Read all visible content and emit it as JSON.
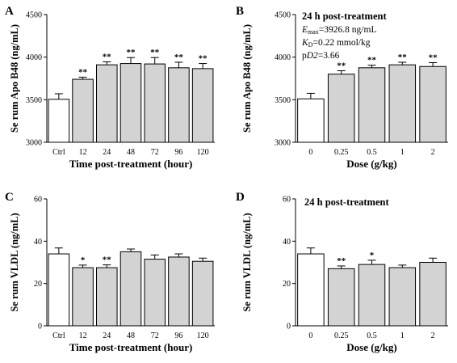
{
  "colors": {
    "control_fill": "#ffffff",
    "treated_fill": "#d3d3d3",
    "stroke": "#000000"
  },
  "chart_data": [
    {
      "panel": "A",
      "type": "bar",
      "xlabel": "Time post-treatment (hour)",
      "ylabel": "Se rum Apo B48 (ng/mL)",
      "categories": [
        "Ctrl",
        "12",
        "24",
        "48",
        "72",
        "96",
        "120"
      ],
      "values": [
        3505,
        3740,
        3910,
        3925,
        3920,
        3875,
        3865
      ],
      "errors": [
        65,
        25,
        35,
        70,
        75,
        65,
        60
      ],
      "significance": [
        "",
        "**",
        "**",
        "**",
        "**",
        "**",
        "**"
      ],
      "fills": [
        "control",
        "treated",
        "treated",
        "treated",
        "treated",
        "treated",
        "treated"
      ],
      "ylim": [
        3000,
        4500
      ],
      "yticks": [
        3000,
        3500,
        4000,
        4500
      ]
    },
    {
      "panel": "B",
      "type": "bar",
      "xlabel": "Dose (g/kg)",
      "ylabel": "Se rum Apo B48 (ng/mL)",
      "categories": [
        "0",
        "0.25",
        "0.5",
        "1",
        "2"
      ],
      "values": [
        3510,
        3800,
        3875,
        3910,
        3890
      ],
      "errors": [
        65,
        40,
        30,
        30,
        45
      ],
      "significance": [
        "",
        "**",
        "**",
        "**",
        "**"
      ],
      "fills": [
        "control",
        "treated",
        "treated",
        "treated",
        "treated"
      ],
      "ylim": [
        3000,
        4500
      ],
      "yticks": [
        3000,
        3500,
        4000,
        4500
      ],
      "annotation": {
        "title": "24 h post-treatment",
        "emax_sym": "E",
        "emax_sub": "max",
        "emax_val": "=3926.8 ng/mL",
        "kd_sym": "K",
        "kd_sub": "D",
        "kd_val": "=0.22 mmol/kg",
        "pd2_pre": "p",
        "pd2_sym": "D2",
        "pd2_val": "=3.66"
      }
    },
    {
      "panel": "C",
      "type": "bar",
      "xlabel": "Time post-treatment (hour)",
      "ylabel": "Se rum VLDL (ng/mL)",
      "categories": [
        "Ctrl",
        "12",
        "24",
        "48",
        "72",
        "96",
        "120"
      ],
      "values": [
        34,
        27.5,
        27.5,
        35,
        31.5,
        32.5,
        30.5
      ],
      "errors": [
        2.8,
        1.2,
        1.3,
        1.3,
        2.0,
        1.5,
        1.5
      ],
      "significance": [
        "",
        "*",
        "**",
        "",
        "",
        "",
        ""
      ],
      "fills": [
        "control",
        "treated",
        "treated",
        "treated",
        "treated",
        "treated",
        "treated"
      ],
      "ylim": [
        0,
        60
      ],
      "yticks": [
        0,
        20,
        40,
        60
      ]
    },
    {
      "panel": "D",
      "type": "bar",
      "xlabel": "Dose (g/kg)",
      "ylabel": "Se rum VLDL (ng/mL)",
      "categories": [
        "0",
        "0.25",
        "0.5",
        "1",
        "2"
      ],
      "values": [
        34,
        27,
        29,
        27.5,
        30
      ],
      "errors": [
        2.8,
        1.3,
        2.0,
        1.2,
        2.0
      ],
      "significance": [
        "",
        "**",
        "*",
        "",
        ""
      ],
      "fills": [
        "control",
        "treated",
        "treated",
        "treated",
        "treated"
      ],
      "ylim": [
        0,
        60
      ],
      "yticks": [
        0,
        20,
        40,
        60
      ],
      "annotation": {
        "title": "24 h post-treatment"
      }
    }
  ]
}
